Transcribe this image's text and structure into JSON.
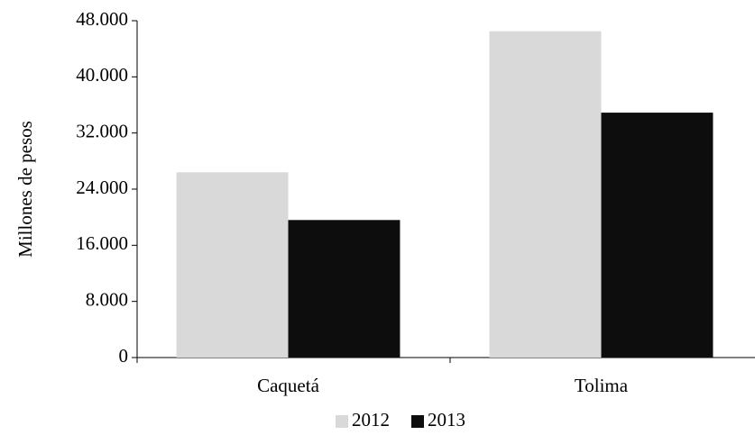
{
  "chart_data": {
    "type": "bar",
    "y_label": "Millones de pesos",
    "categories": [
      "Caquetá",
      "Tolima"
    ],
    "series": [
      {
        "name": "2012",
        "color": "#d9d9d9",
        "values": [
          26400,
          46500
        ]
      },
      {
        "name": "2013",
        "color": "#0d0d0d",
        "values": [
          19600,
          34900
        ]
      }
    ],
    "ylim": [
      0,
      48000
    ],
    "yticks": [
      0,
      {
        "value": 8000,
        "label": "8.000"
      },
      {
        "value": 16000,
        "label": "16.000"
      },
      {
        "value": 24000,
        "label": "24.000"
      },
      {
        "value": 32000,
        "label": "32.000"
      },
      {
        "value": 40000,
        "label": "40.000"
      },
      {
        "value": 48000,
        "label": "48.000"
      }
    ],
    "grid": false,
    "legend": "bottom"
  }
}
